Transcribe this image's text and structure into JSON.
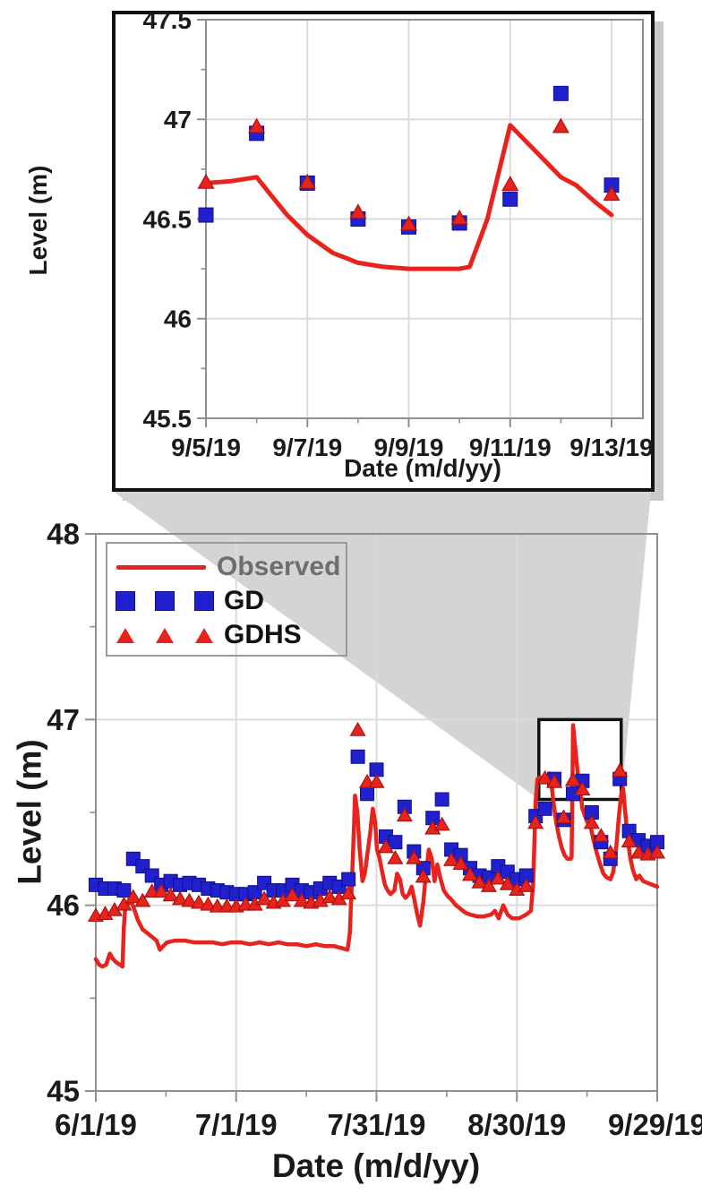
{
  "labels": {
    "date_axis": "Date (m/d/yy)",
    "level_axis": "Level (m)"
  },
  "legend": {
    "items": [
      {
        "label": "Observed",
        "marker": "line",
        "color": "#e8231d"
      },
      {
        "label": "GD",
        "marker": "square",
        "color": "#2020ce"
      },
      {
        "label": "GDHS",
        "marker": "triangle",
        "color": "#e8231d"
      }
    ]
  },
  "colors": {
    "observed_red": "#e8231d",
    "gd_blue": "#2020ce",
    "gd_blue_edge": "#10108a",
    "gdhs_red": "#e8231d",
    "gdhs_red_edge": "#a81410",
    "gridline": "#dbdbdb",
    "plot_border": "#8f8f8f",
    "frame_black": "#111111",
    "wedge_gray": "#d4d4d4",
    "shadow_gray": "#c9c9c9",
    "text": "#1a1a1a",
    "observed_label_gray": "#6e6e6e"
  },
  "chart_data": [
    {
      "type": "line",
      "role": "zoom-inset",
      "xlabel": "Date (m/d/yy)",
      "ylabel": "Level (m)",
      "ylim": [
        45.5,
        47.5
      ],
      "ytick_values": [
        45.5,
        46,
        46.5,
        47,
        47.5
      ],
      "ytick_labels": [
        "45.5",
        "46",
        "46.5",
        "47",
        "47.5"
      ],
      "yminor_values": [
        45.75,
        46.25,
        46.75,
        47.25
      ],
      "xlim_days": [
        0,
        8
      ],
      "xtick_days": [
        0,
        2,
        4,
        6,
        8
      ],
      "xtick_labels": [
        "9/5/19",
        "9/7/19",
        "9/9/19",
        "9/11/19",
        "9/13/19"
      ],
      "xminor_days": [
        1,
        3,
        5,
        7
      ],
      "grid": true,
      "series": [
        {
          "name": "Observed",
          "style": "line",
          "points": [
            [
              0,
              46.68
            ],
            [
              0.5,
              46.69
            ],
            [
              1,
              46.71
            ],
            [
              1.25,
              46.63
            ],
            [
              1.6,
              46.52
            ],
            [
              2,
              46.42
            ],
            [
              2.5,
              46.33
            ],
            [
              3,
              46.28
            ],
            [
              3.5,
              46.26
            ],
            [
              4,
              46.25
            ],
            [
              4.5,
              46.25
            ],
            [
              5,
              46.25
            ],
            [
              5.2,
              46.26
            ],
            [
              5.55,
              46.5
            ],
            [
              6,
              46.97
            ],
            [
              6.5,
              46.84
            ],
            [
              7,
              46.71
            ],
            [
              7.3,
              46.67
            ],
            [
              7.7,
              46.58
            ],
            [
              8,
              46.52
            ]
          ]
        },
        {
          "name": "GD",
          "style": "square",
          "x_days": [
            0,
            1,
            2,
            3,
            4,
            5,
            6,
            7,
            8
          ],
          "values": [
            46.52,
            46.93,
            46.68,
            46.5,
            46.46,
            46.48,
            46.6,
            47.13,
            46.67
          ]
        },
        {
          "name": "GDHS",
          "style": "triangle",
          "x_days": [
            0,
            1,
            2,
            3,
            4,
            5,
            6,
            7,
            8
          ],
          "values": [
            46.68,
            46.96,
            46.68,
            46.53,
            46.47,
            46.5,
            46.67,
            46.96,
            46.62
          ]
        }
      ]
    },
    {
      "type": "line",
      "role": "main-chart",
      "xlabel": "Date (m/d/yy)",
      "ylabel": "Level (m)",
      "ylim": [
        45,
        48
      ],
      "ytick_values": [
        45,
        46,
        47,
        48
      ],
      "ytick_labels": [
        "45",
        "46",
        "47",
        "48"
      ],
      "yminor_values": [
        45.5,
        46.5,
        47.5
      ],
      "xlim_days": [
        0,
        120
      ],
      "xtick_days": [
        0,
        30,
        60,
        90,
        120
      ],
      "xtick_labels": [
        "6/1/19",
        "7/1/19",
        "7/31/19",
        "8/30/19",
        "9/29/19"
      ],
      "xminor_days": [
        15,
        45,
        75,
        105
      ],
      "grid": true,
      "zoom_box": {
        "day_start": 94.7,
        "day_end": 112.3,
        "level_low": 46.57,
        "level_high": 47.0
      },
      "series": [
        {
          "name": "Observed",
          "style": "line",
          "points": [
            [
              0,
              45.71
            ],
            [
              0.7,
              45.68
            ],
            [
              1.4,
              45.67
            ],
            [
              2.2,
              45.68
            ],
            [
              3,
              45.74
            ],
            [
              3.7,
              45.71
            ],
            [
              4.5,
              45.69
            ],
            [
              5.2,
              45.68
            ],
            [
              5.7,
              45.67
            ],
            [
              6,
              45.88
            ],
            [
              6.3,
              45.99
            ],
            [
              7,
              46.01
            ],
            [
              7.6,
              46.02
            ],
            [
              8.2,
              45.98
            ],
            [
              9,
              45.92
            ],
            [
              10,
              45.87
            ],
            [
              11,
              45.85
            ],
            [
              12,
              45.83
            ],
            [
              13,
              45.81
            ],
            [
              13.7,
              45.76
            ],
            [
              14.4,
              45.78
            ],
            [
              15.2,
              45.8
            ],
            [
              17,
              45.81
            ],
            [
              19,
              45.81
            ],
            [
              21,
              45.8
            ],
            [
              23,
              45.8
            ],
            [
              25,
              45.8
            ],
            [
              27,
              45.79
            ],
            [
              29,
              45.8
            ],
            [
              31,
              45.8
            ],
            [
              33,
              45.79
            ],
            [
              35,
              45.8
            ],
            [
              37,
              45.79
            ],
            [
              39,
              45.8
            ],
            [
              41,
              45.79
            ],
            [
              43,
              45.79
            ],
            [
              45,
              45.78
            ],
            [
              47,
              45.79
            ],
            [
              49,
              45.78
            ],
            [
              51,
              45.78
            ],
            [
              52.5,
              45.77
            ],
            [
              53.8,
              45.76
            ],
            [
              54.3,
              45.85
            ],
            [
              55,
              46.3
            ],
            [
              55.4,
              46.59
            ],
            [
              55.9,
              46.5
            ],
            [
              56.4,
              46.3
            ],
            [
              57,
              46.13
            ],
            [
              57.5,
              46.17
            ],
            [
              58,
              46.27
            ],
            [
              58.6,
              46.38
            ],
            [
              59.2,
              46.52
            ],
            [
              59.7,
              46.45
            ],
            [
              60.1,
              46.3
            ],
            [
              60.6,
              46.26
            ],
            [
              61.2,
              46.18
            ],
            [
              61.8,
              46.11
            ],
            [
              62.4,
              46.08
            ],
            [
              63,
              46.06
            ],
            [
              63.8,
              46.08
            ],
            [
              64.4,
              46.17
            ],
            [
              65,
              46.14
            ],
            [
              65.6,
              46.06
            ],
            [
              66.2,
              46.04
            ],
            [
              66.9,
              46.06
            ],
            [
              67.5,
              46.1
            ],
            [
              68.1,
              46.03
            ],
            [
              68.7,
              45.95
            ],
            [
              69.3,
              45.89
            ],
            [
              70,
              46.02
            ],
            [
              70.6,
              46.18
            ],
            [
              71.2,
              46.3
            ],
            [
              71.8,
              46.25
            ],
            [
              72.4,
              46.13
            ],
            [
              73,
              46.22
            ],
            [
              73.6,
              46.15
            ],
            [
              74.4,
              46.08
            ],
            [
              75.2,
              46.05
            ],
            [
              76,
              46.03
            ],
            [
              77,
              46.0
            ],
            [
              78,
              45.98
            ],
            [
              79,
              45.96
            ],
            [
              80,
              45.95
            ],
            [
              81.5,
              45.94
            ],
            [
              83,
              45.94
            ],
            [
              84.5,
              45.95
            ],
            [
              85.3,
              45.97
            ],
            [
              86.1,
              45.93
            ],
            [
              87.1,
              46.0
            ],
            [
              88,
              45.95
            ],
            [
              89,
              45.93
            ],
            [
              90.5,
              45.93
            ],
            [
              92,
              45.95
            ],
            [
              93,
              45.97
            ],
            [
              93.5,
              46.12
            ],
            [
              94,
              46.55
            ],
            [
              94.4,
              46.68
            ],
            [
              95,
              46.69
            ],
            [
              95.7,
              46.68
            ],
            [
              96.4,
              46.69
            ],
            [
              97,
              46.71
            ],
            [
              97.4,
              46.65
            ],
            [
              97.9,
              46.54
            ],
            [
              98.4,
              46.45
            ],
            [
              99,
              46.37
            ],
            [
              99.6,
              46.31
            ],
            [
              100.2,
              46.27
            ],
            [
              100.8,
              46.25
            ],
            [
              101.5,
              46.25
            ],
            [
              101.7,
              46.26
            ],
            [
              102,
              46.97
            ],
            [
              102.5,
              46.84
            ],
            [
              103,
              46.71
            ],
            [
              103.3,
              46.67
            ],
            [
              104,
              46.52
            ],
            [
              105,
              46.45
            ],
            [
              105.7,
              46.43
            ],
            [
              106.4,
              46.35
            ],
            [
              107.1,
              46.28
            ],
            [
              107.8,
              46.22
            ],
            [
              108.5,
              46.17
            ],
            [
              109.2,
              46.15
            ],
            [
              110,
              46.14
            ],
            [
              110.6,
              46.18
            ],
            [
              111.2,
              46.3
            ],
            [
              111.8,
              46.48
            ],
            [
              112.3,
              46.6
            ],
            [
              112.7,
              46.63
            ],
            [
              113.1,
              46.52
            ],
            [
              113.6,
              46.38
            ],
            [
              114.2,
              46.26
            ],
            [
              114.8,
              46.19
            ],
            [
              115.5,
              46.14
            ],
            [
              116.2,
              46.16
            ],
            [
              117,
              46.13
            ],
            [
              118,
              46.12
            ],
            [
              119,
              46.11
            ],
            [
              120,
              46.1
            ]
          ]
        },
        {
          "name": "GD",
          "style": "square",
          "x_start_day": 0,
          "x_step_days": 2,
          "values": [
            46.11,
            46.09,
            46.09,
            46.08,
            46.25,
            46.21,
            46.16,
            46.11,
            46.13,
            46.11,
            46.12,
            46.11,
            46.09,
            46.08,
            46.07,
            46.06,
            46.06,
            46.07,
            46.12,
            46.08,
            46.08,
            46.11,
            46.08,
            46.07,
            46.09,
            46.12,
            46.1,
            46.14,
            46.8,
            46.6,
            46.73,
            46.37,
            46.34,
            46.53,
            46.29,
            46.2,
            46.47,
            46.57,
            46.3,
            46.27,
            46.2,
            46.16,
            46.15,
            46.21,
            46.18,
            46.14,
            46.16,
            46.48,
            46.52,
            46.68,
            46.46,
            46.6,
            46.67,
            46.5,
            46.34,
            46.25,
            46.68,
            46.4,
            46.35,
            46.32,
            46.34
          ]
        },
        {
          "name": "GDHS",
          "style": "triangle",
          "x_start_day": 0,
          "x_step_days": 2,
          "values": [
            45.94,
            45.95,
            45.97,
            46.0,
            46.04,
            46.02,
            46.07,
            46.07,
            46.05,
            46.03,
            46.02,
            46.01,
            46.0,
            45.99,
            45.99,
            45.99,
            46.0,
            46.0,
            46.03,
            46.01,
            46.02,
            46.05,
            46.02,
            46.01,
            46.02,
            46.04,
            46.03,
            46.06,
            46.94,
            46.66,
            46.66,
            46.31,
            46.25,
            46.48,
            46.25,
            46.15,
            46.41,
            46.43,
            46.24,
            46.22,
            46.16,
            46.12,
            46.1,
            46.14,
            46.11,
            46.08,
            46.1,
            46.44,
            46.68,
            46.66,
            46.47,
            46.67,
            46.62,
            46.44,
            46.37,
            46.28,
            46.72,
            46.34,
            46.28,
            46.27,
            46.28
          ]
        }
      ]
    }
  ]
}
